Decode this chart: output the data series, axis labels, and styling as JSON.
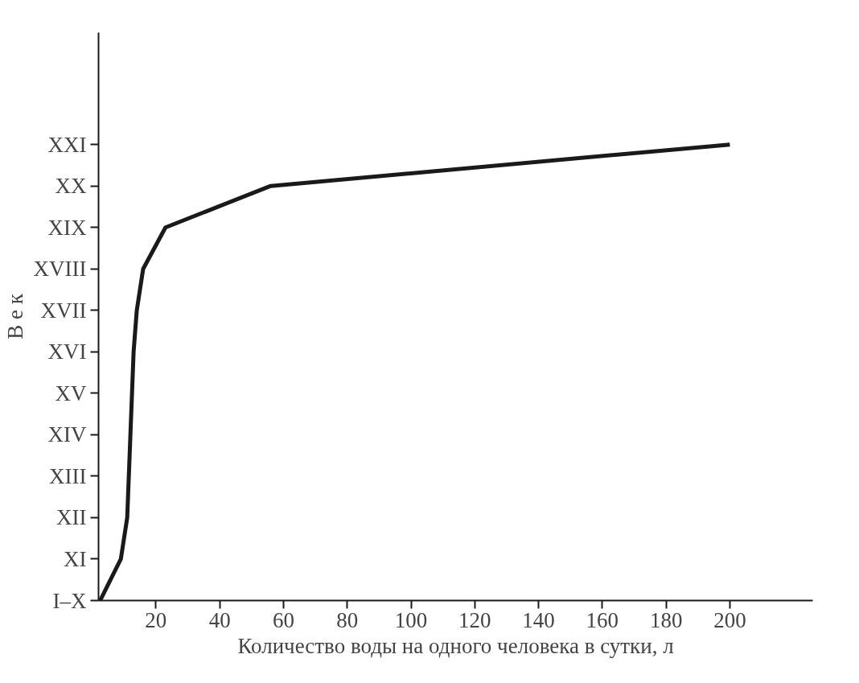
{
  "chart_data": {
    "type": "line",
    "orientation": "horizontal",
    "xlabel": "Количество воды на одного человека в сутки, л",
    "ylabel": "В е к",
    "categories": [
      "XXI",
      "XX",
      "XIX",
      "XVIII",
      "XVII",
      "XVI",
      "XV",
      "XIV",
      "XIII",
      "XII",
      "XI",
      "I–X"
    ],
    "series": [
      {
        "color": "#1a1a1a",
        "values": [
          200,
          56,
          23,
          16,
          14,
          13,
          12.5,
          12,
          11.5,
          11,
          9,
          2.5
        ]
      }
    ],
    "xlim": [
      2,
      226
    ],
    "xticks": [
      20,
      40,
      60,
      80,
      100,
      120,
      140,
      160,
      180,
      200
    ],
    "grid": false,
    "marker": "none",
    "line_style": "solid"
  }
}
